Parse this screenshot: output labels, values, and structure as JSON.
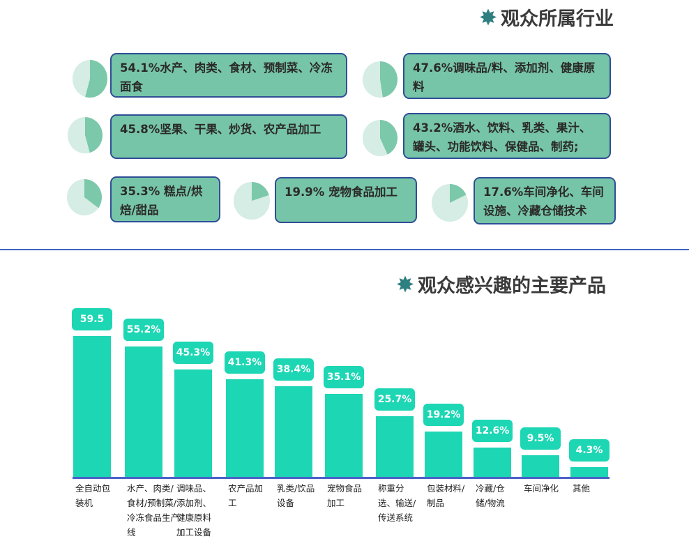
{
  "industry_section": {
    "title": "观众所属行业",
    "items": [
      {
        "value": 54.1,
        "text": "54.1%水产、肉类、食材、预制菜、冷冻面食"
      },
      {
        "value": 47.6,
        "text": "47.6%调味品/料、添加剂、健康原料"
      },
      {
        "value": 45.8,
        "text": "45.8%坚果、干果、炒货、农产品加工"
      },
      {
        "value": 43.2,
        "text": "43.2%酒水、饮料、乳类、果汁、罐头、功能饮料、保健品、制药;"
      },
      {
        "value": 35.3,
        "text": "35.3% 糕点/烘焙/甜品"
      },
      {
        "value": 19.9,
        "text": "19.9% 宠物食品加工"
      },
      {
        "value": 17.6,
        "text": "17.6%车间净化、车间设施、冷藏仓储技术"
      }
    ],
    "colors": {
      "slice": "#7cc8aa",
      "rest": "#d5ede4",
      "box": "#77c5a8",
      "border": "#2e4e96"
    }
  },
  "chart_data": {
    "type": "bar",
    "title": "观众感兴趣的主要产品",
    "categories": [
      "全自动包装机",
      "水产、肉类/食材/预制菜/冷冻食品生产线",
      "调味品、添加剂、健康原料加工设备",
      "农产品加工",
      "乳类/饮品设备",
      "宠物食品加工",
      "称重分选、输送/传送系统",
      "包装材料/制品",
      "冷藏/仓储/物流",
      "车间净化",
      "其他"
    ],
    "values": [
      59.5,
      55.2,
      45.3,
      41.3,
      38.4,
      35.1,
      25.7,
      19.2,
      12.6,
      9.5,
      4.3
    ],
    "data_labels": [
      "59.5",
      "55.2%",
      "45.3%",
      "41.3%",
      "38.4%",
      "35.1%",
      "25.7%",
      "19.2%",
      "12.6%",
      "9.5%",
      "4.3%"
    ],
    "bar_color": "#1dd6b4",
    "grid": false
  }
}
